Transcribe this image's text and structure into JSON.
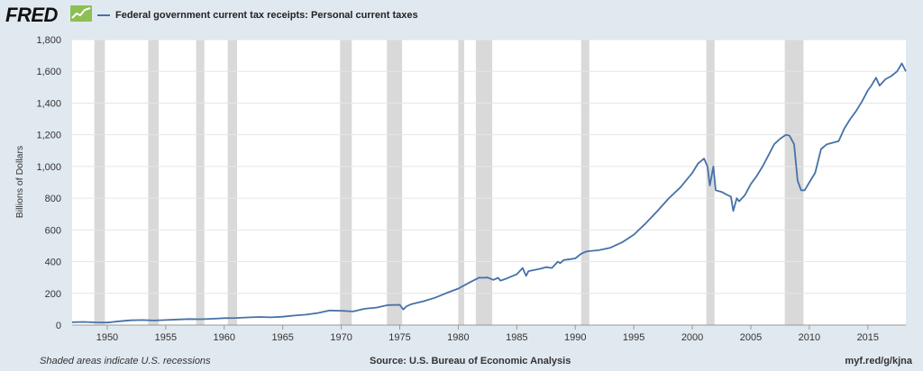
{
  "header": {
    "logo_text": "FRED",
    "legend_label": "Federal government current tax receipts: Personal current taxes"
  },
  "footer": {
    "note": "Shaded areas indicate U.S. recessions",
    "source": "Source: U.S. Bureau of Economic Analysis",
    "link": "myf.red/g/kjna"
  },
  "chart_data": {
    "type": "line",
    "title": "",
    "ylabel": "Billions of Dollars",
    "xlabel": "",
    "xlim": [
      1947,
      2018.25
    ],
    "ylim": [
      0,
      1800
    ],
    "yticks": [
      0,
      200,
      400,
      600,
      800,
      1000,
      1200,
      1400,
      1600,
      1800
    ],
    "ytick_labels": [
      "0",
      "200",
      "400",
      "600",
      "800",
      "1,000",
      "1,200",
      "1,400",
      "1,600",
      "1,800"
    ],
    "xticks": [
      1950,
      1955,
      1960,
      1965,
      1970,
      1975,
      1980,
      1985,
      1990,
      1995,
      2000,
      2005,
      2010,
      2015
    ],
    "grid": true,
    "line_color": "#4572a7",
    "recession_color": "#d9d9d9",
    "recessions": [
      [
        1948.9,
        1949.8
      ],
      [
        1953.5,
        1954.4
      ],
      [
        1957.6,
        1958.3
      ],
      [
        1960.3,
        1961.1
      ],
      [
        1969.9,
        1970.9
      ],
      [
        1973.9,
        1975.2
      ],
      [
        1980.0,
        1980.5
      ],
      [
        1981.5,
        1982.9
      ],
      [
        1990.5,
        1991.2
      ],
      [
        2001.2,
        2001.9
      ],
      [
        2007.9,
        2009.5
      ]
    ],
    "series": [
      {
        "name": "Federal government current tax receipts: Personal current taxes",
        "points": [
          [
            1947,
            18
          ],
          [
            1948,
            20
          ],
          [
            1949,
            17
          ],
          [
            1950,
            16
          ],
          [
            1951,
            24
          ],
          [
            1952,
            30
          ],
          [
            1953,
            32
          ],
          [
            1954,
            29
          ],
          [
            1955,
            32
          ],
          [
            1956,
            35
          ],
          [
            1957,
            38
          ],
          [
            1958,
            37
          ],
          [
            1959,
            40
          ],
          [
            1960,
            44
          ],
          [
            1961,
            45
          ],
          [
            1962,
            48
          ],
          [
            1963,
            51
          ],
          [
            1964,
            49
          ],
          [
            1965,
            53
          ],
          [
            1966,
            60
          ],
          [
            1967,
            66
          ],
          [
            1968,
            76
          ],
          [
            1969,
            92
          ],
          [
            1970,
            90
          ],
          [
            1971,
            86
          ],
          [
            1972,
            103
          ],
          [
            1973,
            110
          ],
          [
            1974,
            126
          ],
          [
            1975.0,
            128
          ],
          [
            1975.3,
            98
          ],
          [
            1975.6,
            120
          ],
          [
            1976,
            132
          ],
          [
            1977,
            150
          ],
          [
            1978,
            172
          ],
          [
            1979,
            202
          ],
          [
            1980,
            230
          ],
          [
            1981,
            270
          ],
          [
            1981.8,
            300
          ],
          [
            1982,
            298
          ],
          [
            1982.5,
            300
          ],
          [
            1983,
            285
          ],
          [
            1983.4,
            298
          ],
          [
            1983.6,
            280
          ],
          [
            1984,
            290
          ],
          [
            1985,
            320
          ],
          [
            1985.5,
            360
          ],
          [
            1985.8,
            310
          ],
          [
            1986,
            340
          ],
          [
            1987,
            355
          ],
          [
            1987.5,
            365
          ],
          [
            1988,
            360
          ],
          [
            1988.5,
            400
          ],
          [
            1988.7,
            390
          ],
          [
            1989,
            410
          ],
          [
            1990,
            420
          ],
          [
            1990.5,
            450
          ],
          [
            1991,
            465
          ],
          [
            1992,
            472
          ],
          [
            1993,
            488
          ],
          [
            1994,
            522
          ],
          [
            1995,
            570
          ],
          [
            1996,
            640
          ],
          [
            1997,
            718
          ],
          [
            1998,
            800
          ],
          [
            1999,
            870
          ],
          [
            2000,
            960
          ],
          [
            2000.5,
            1020
          ],
          [
            2001.0,
            1050
          ],
          [
            2001.3,
            1000
          ],
          [
            2001.5,
            880
          ],
          [
            2001.8,
            1000
          ],
          [
            2002.0,
            850
          ],
          [
            2002.5,
            840
          ],
          [
            2003.0,
            820
          ],
          [
            2003.3,
            810
          ],
          [
            2003.5,
            720
          ],
          [
            2003.8,
            800
          ],
          [
            2004,
            780
          ],
          [
            2004.5,
            820
          ],
          [
            2005,
            890
          ],
          [
            2005.5,
            940
          ],
          [
            2006,
            1000
          ],
          [
            2006.5,
            1070
          ],
          [
            2007,
            1140
          ],
          [
            2007.5,
            1175
          ],
          [
            2008.0,
            1200
          ],
          [
            2008.3,
            1195
          ],
          [
            2008.7,
            1140
          ],
          [
            2009.0,
            910
          ],
          [
            2009.3,
            850
          ],
          [
            2009.6,
            850
          ],
          [
            2010,
            900
          ],
          [
            2010.5,
            960
          ],
          [
            2011,
            1110
          ],
          [
            2011.5,
            1140
          ],
          [
            2012,
            1150
          ],
          [
            2012.5,
            1160
          ],
          [
            2013,
            1240
          ],
          [
            2013.5,
            1300
          ],
          [
            2014,
            1350
          ],
          [
            2014.5,
            1410
          ],
          [
            2015,
            1480
          ],
          [
            2015.3,
            1510
          ],
          [
            2015.7,
            1560
          ],
          [
            2016,
            1510
          ],
          [
            2016.5,
            1550
          ],
          [
            2017,
            1570
          ],
          [
            2017.5,
            1600
          ],
          [
            2017.9,
            1650
          ],
          [
            2018.25,
            1600
          ]
        ]
      }
    ]
  }
}
